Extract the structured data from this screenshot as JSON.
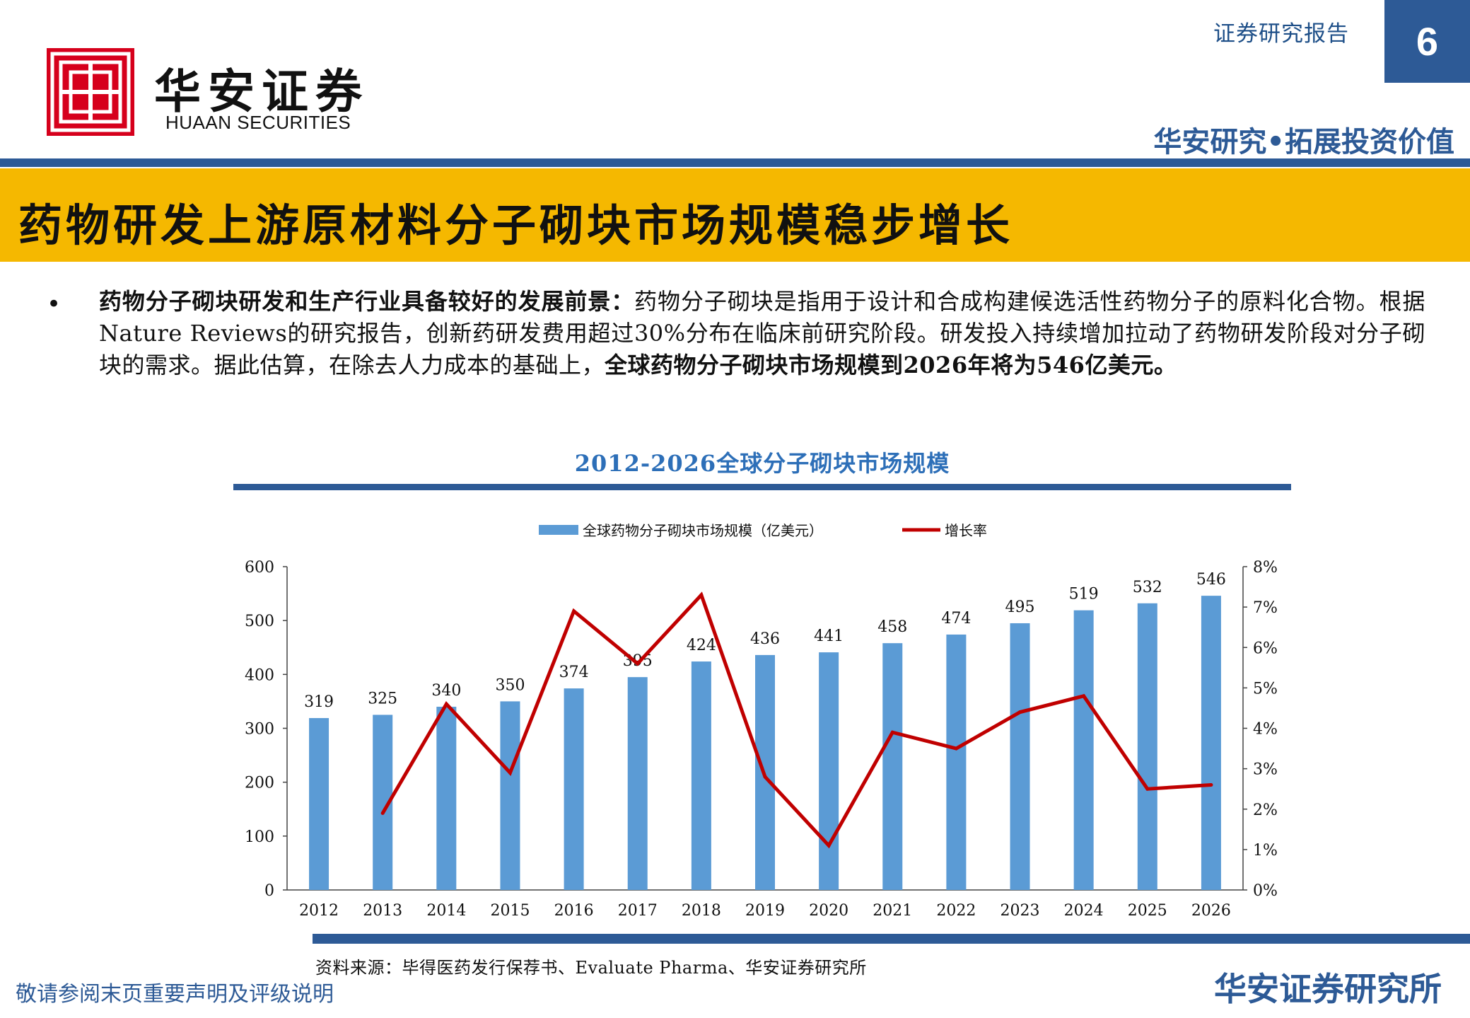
{
  "header": {
    "logo_cn": "华安证券",
    "logo_en": "HUAAN SECURITIES",
    "report_type": "证券研究报告",
    "page_number": "6",
    "slogan": "华安研究•拓展投资价值"
  },
  "title": "药物研发上游原材料分子砌块市场规模稳步增长",
  "body": {
    "bullet": "•",
    "lead_bold": "药物分子砌块研发和生产行业具备较好的发展前景：",
    "text": "药物分子砌块是指用于设计和合成构建候选活性药物分子的原料化合物。根据Nature Reviews的研究报告，创新药研发费用超过30%分布在临床前研究阶段。研发投入持续增加拉动了药物研发阶段对分子砌块的需求。据此估算，在除去人力成本的基础上，",
    "tail_bold": "全球药物分子砌块市场规模到2026年将为546亿美元。"
  },
  "chart_data": {
    "type": "bar",
    "title": "2012-2026全球分子砌块市场规模",
    "categories": [
      "2012",
      "2013",
      "2014",
      "2015",
      "2016",
      "2017",
      "2018",
      "2019",
      "2020",
      "2021",
      "2022",
      "2023",
      "2024",
      "2025",
      "2026"
    ],
    "series": [
      {
        "name": "全球药物分子砌块市场规模（亿美元）",
        "type": "bar",
        "axis": "left",
        "color": "#5b9bd5",
        "values": [
          319,
          325,
          340,
          350,
          374,
          395,
          424,
          436,
          441,
          458,
          474,
          495,
          519,
          532,
          546
        ]
      },
      {
        "name": "增长率",
        "type": "line",
        "axis": "right",
        "color": "#c00000",
        "values": [
          null,
          1.9,
          4.6,
          2.9,
          6.9,
          5.6,
          7.3,
          2.8,
          1.1,
          3.9,
          3.5,
          4.4,
          4.8,
          2.5,
          2.6
        ]
      }
    ],
    "ylim_left": [
      0,
      600
    ],
    "yticks_left": [
      "0",
      "100",
      "200",
      "300",
      "400",
      "500",
      "600"
    ],
    "ylim_right": [
      0,
      8
    ],
    "yticks_right": [
      "0%",
      "1%",
      "2%",
      "3%",
      "4%",
      "5%",
      "6%",
      "7%",
      "8%"
    ],
    "legend_position": "top",
    "grid": false
  },
  "source": "资料来源：毕得医药发行保荐书、Evaluate Pharma、华安证券研究所",
  "footer": {
    "disclaimer": "敬请参阅末页重要声明及评级说明",
    "org": "华安证券研究所"
  }
}
